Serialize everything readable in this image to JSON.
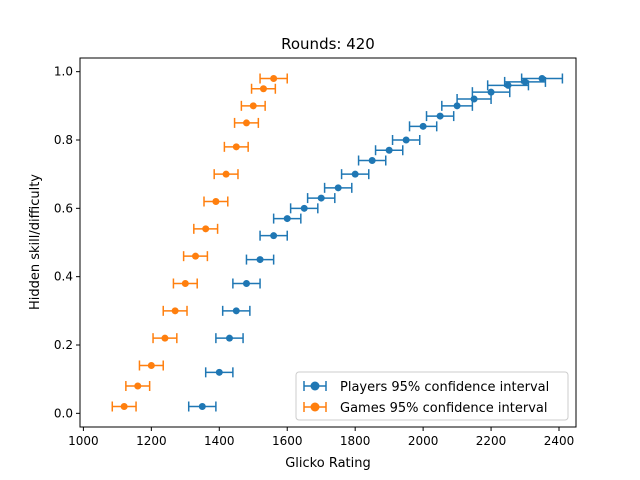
{
  "chart_data": {
    "type": "scatter",
    "title": "Rounds: 420",
    "xlabel": "Glicko Rating",
    "ylabel": "Hidden skill/difficulty",
    "xlim": [
      990,
      2450
    ],
    "ylim": [
      -0.04,
      1.04
    ],
    "xticks": [
      1000,
      1200,
      1400,
      1600,
      1800,
      2000,
      2200,
      2400
    ],
    "yticks": [
      0.0,
      0.2,
      0.4,
      0.6,
      0.8,
      1.0
    ],
    "xtick_labels": [
      "1000",
      "1200",
      "1400",
      "1600",
      "1800",
      "2000",
      "2200",
      "2400"
    ],
    "ytick_labels": [
      "0.0",
      "0.2",
      "0.4",
      "0.6",
      "0.8",
      "1.0"
    ],
    "grid": false,
    "legend": {
      "placement": "lower-right"
    },
    "series": [
      {
        "name": "Players 95% confidence interval",
        "color": "#1f77b4",
        "marker": "circle",
        "error_bars": "horizontal",
        "x": [
          1350,
          1400,
          1430,
          1450,
          1480,
          1520,
          1560,
          1600,
          1650,
          1700,
          1750,
          1800,
          1850,
          1900,
          1950,
          2000,
          2050,
          2100,
          2150,
          2200,
          2250,
          2300,
          2350
        ],
        "y": [
          0.02,
          0.12,
          0.22,
          0.3,
          0.38,
          0.45,
          0.52,
          0.57,
          0.6,
          0.63,
          0.66,
          0.7,
          0.74,
          0.77,
          0.8,
          0.84,
          0.87,
          0.9,
          0.92,
          0.94,
          0.96,
          0.97,
          0.98
        ],
        "xerr": [
          40,
          40,
          40,
          40,
          40,
          40,
          40,
          40,
          40,
          40,
          40,
          40,
          40,
          40,
          40,
          40,
          40,
          45,
          50,
          55,
          60,
          60,
          60
        ]
      },
      {
        "name": "Games 95% confidence interval",
        "color": "#ff7f0e",
        "marker": "circle",
        "error_bars": "horizontal",
        "x": [
          1120,
          1160,
          1200,
          1240,
          1270,
          1300,
          1330,
          1360,
          1390,
          1420,
          1450,
          1480,
          1500,
          1530,
          1560
        ],
        "y": [
          0.02,
          0.08,
          0.14,
          0.22,
          0.3,
          0.38,
          0.46,
          0.54,
          0.62,
          0.7,
          0.78,
          0.85,
          0.9,
          0.95,
          0.98
        ],
        "xerr": [
          35,
          35,
          35,
          35,
          35,
          35,
          35,
          35,
          35,
          35,
          35,
          35,
          35,
          35,
          40
        ]
      }
    ]
  }
}
